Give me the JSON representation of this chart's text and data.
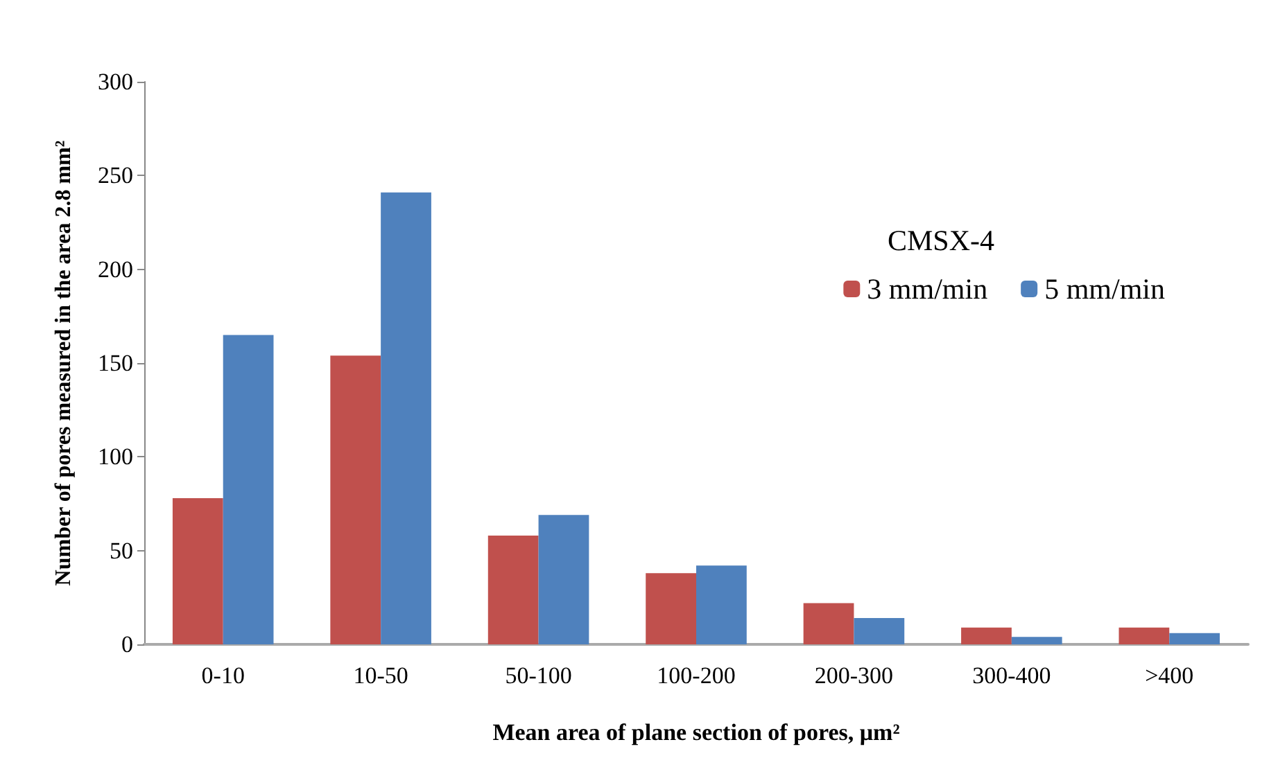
{
  "chart_data": {
    "type": "bar",
    "xlabel": "Mean area of plane section of pores, μm²",
    "ylabel": "Number of pores measured in the area 2.8 mm²",
    "legend_title": "CMSX-4",
    "categories": [
      "0-10",
      "10-50",
      "50-100",
      "100-200",
      "200-300",
      "300-400",
      ">400"
    ],
    "series": [
      {
        "name": "3 mm/min",
        "color": "#c0504d",
        "values": [
          78,
          154,
          58,
          38,
          22,
          9,
          9
        ]
      },
      {
        "name": "5 mm/min",
        "color": "#4f81bd",
        "values": [
          165,
          241,
          69,
          42,
          14,
          4,
          6
        ]
      }
    ],
    "ylim": [
      0,
      300
    ],
    "yticks": [
      0,
      50,
      100,
      150,
      200,
      250,
      300
    ],
    "grid": false,
    "legend": "top right"
  }
}
